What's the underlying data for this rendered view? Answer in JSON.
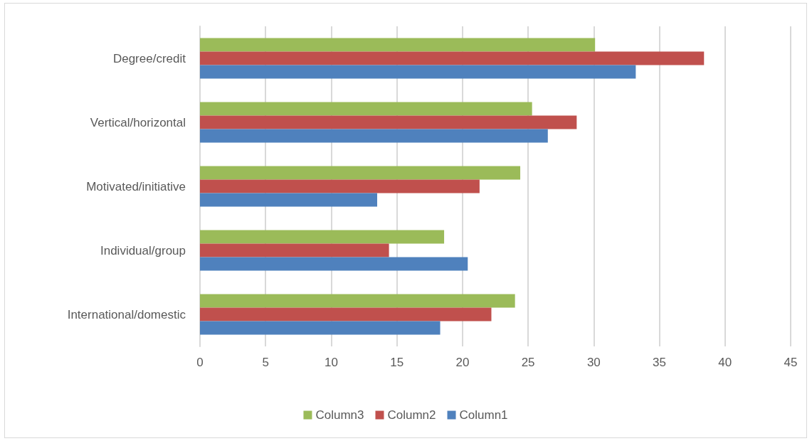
{
  "chart_data": {
    "type": "bar",
    "orientation": "horizontal",
    "categories": [
      "Degree/credit",
      "Vertical/horizontal",
      "Motivated/initiative",
      "Individual/group",
      "International/domestic"
    ],
    "series": [
      {
        "name": "Column3",
        "color": "#9bbb59",
        "values": [
          30.1,
          25.3,
          24.4,
          18.6,
          24.0
        ]
      },
      {
        "name": "Column2",
        "color": "#c0504d",
        "values": [
          38.4,
          28.7,
          21.3,
          14.4,
          22.2
        ]
      },
      {
        "name": "Column1",
        "color": "#4f81bd",
        "values": [
          33.2,
          26.5,
          13.5,
          20.4,
          18.3
        ]
      }
    ],
    "xlim": [
      0,
      45
    ],
    "xticks": [
      0,
      5,
      10,
      15,
      20,
      25,
      30,
      35,
      40,
      45
    ],
    "grid": "x",
    "legend": "bottom"
  }
}
